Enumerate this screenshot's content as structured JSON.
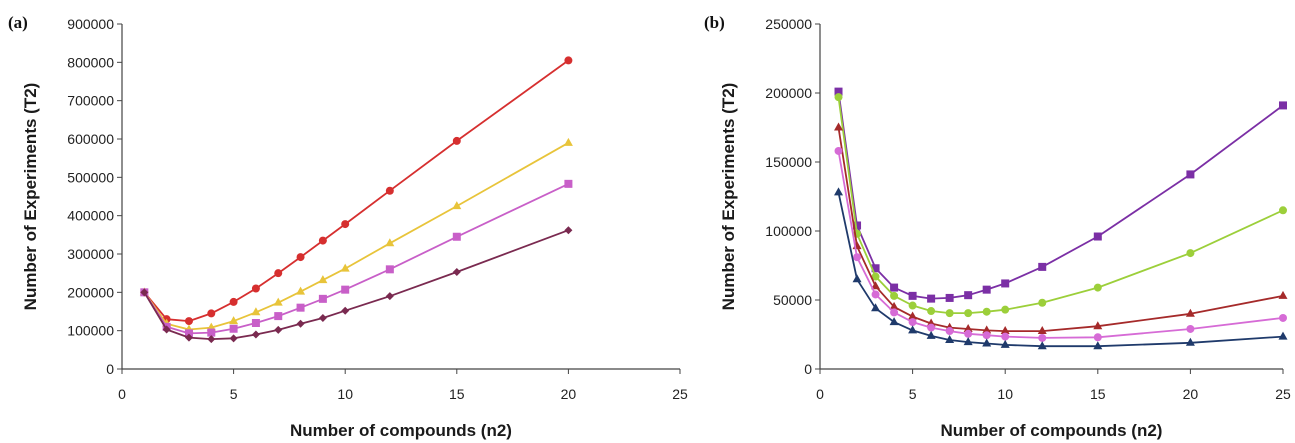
{
  "chart_data": [
    {
      "type": "line",
      "panel_label": "(a)",
      "xlabel": "Number of compounds (n2)",
      "ylabel": "Number of Experiments (T2)",
      "xlim": [
        0,
        25
      ],
      "ylim": [
        0,
        900000
      ],
      "x_ticks": [
        0,
        5,
        10,
        15,
        20,
        25
      ],
      "y_ticks": [
        0,
        100000,
        200000,
        300000,
        400000,
        500000,
        600000,
        700000,
        800000,
        900000
      ],
      "x_tick_labels": [
        "0",
        "5",
        "10",
        "15",
        "20",
        "25"
      ],
      "y_tick_labels": [
        "0",
        "100000",
        "200000",
        "300000",
        "400000",
        "500000",
        "600000",
        "700000",
        "800000",
        "900000"
      ],
      "x": [
        1,
        2,
        3,
        4,
        5,
        6,
        7,
        8,
        9,
        10,
        12,
        15,
        20
      ],
      "series": [
        {
          "color": "#d62f2f",
          "marker": "circle",
          "values": [
            200000,
            130000,
            125000,
            145000,
            175000,
            210000,
            250000,
            292000,
            335000,
            378000,
            465000,
            595000,
            805000
          ]
        },
        {
          "color": "#e8c43a",
          "marker": "triangle",
          "values": [
            200000,
            118000,
            103000,
            108000,
            125000,
            148000,
            173000,
            202000,
            232000,
            262000,
            328000,
            425000,
            590000
          ]
        },
        {
          "color": "#c85fc8",
          "marker": "square",
          "values": [
            200000,
            110000,
            93000,
            95000,
            105000,
            120000,
            138000,
            160000,
            183000,
            207000,
            260000,
            345000,
            483000
          ]
        },
        {
          "color": "#7a2a50",
          "marker": "diamond",
          "values": [
            200000,
            103000,
            82000,
            78000,
            80000,
            90000,
            102000,
            118000,
            133000,
            152000,
            190000,
            253000,
            362000
          ]
        }
      ]
    },
    {
      "type": "line",
      "panel_label": "(b)",
      "xlabel": "Number of compounds (n2)",
      "ylabel": "Number of Experiments (T2)",
      "xlim": [
        0,
        25
      ],
      "ylim": [
        0,
        250000
      ],
      "x_ticks": [
        0,
        5,
        10,
        15,
        20,
        25
      ],
      "y_ticks": [
        0,
        50000,
        100000,
        150000,
        200000,
        250000
      ],
      "x_tick_labels": [
        "0",
        "5",
        "10",
        "15",
        "20",
        "25"
      ],
      "y_tick_labels": [
        "0",
        "50000",
        "100000",
        "150000",
        "200000",
        "250000"
      ],
      "x": [
        1,
        2,
        3,
        4,
        5,
        6,
        7,
        8,
        9,
        10,
        12,
        15,
        20,
        25
      ],
      "series": [
        {
          "color": "#7b2fa5",
          "marker": "square",
          "values": [
            201000,
            104000,
            73000,
            59000,
            53000,
            51000,
            51500,
            53500,
            57500,
            62000,
            74000,
            96000,
            141000,
            191000
          ]
        },
        {
          "color": "#9ccf3a",
          "marker": "circle",
          "values": [
            197000,
            98000,
            67000,
            53000,
            46000,
            42000,
            40500,
            40500,
            41500,
            43000,
            48000,
            59000,
            84000,
            115000
          ]
        },
        {
          "color": "#a52a2a",
          "marker": "triangle",
          "values": [
            175000,
            89000,
            60000,
            45000,
            38000,
            33000,
            30000,
            29000,
            28000,
            27500,
            27500,
            31000,
            40000,
            53000
          ]
        },
        {
          "color": "#d66bd6",
          "marker": "circle",
          "values": [
            158000,
            81000,
            54000,
            41000,
            34000,
            30000,
            27500,
            25500,
            24500,
            23500,
            22500,
            23000,
            29000,
            37000
          ]
        },
        {
          "color": "#1f3a6b",
          "marker": "triangle",
          "values": [
            128000,
            65000,
            44000,
            34000,
            28000,
            24000,
            21000,
            19500,
            18500,
            17500,
            16500,
            16500,
            19000,
            23500
          ]
        }
      ]
    }
  ]
}
